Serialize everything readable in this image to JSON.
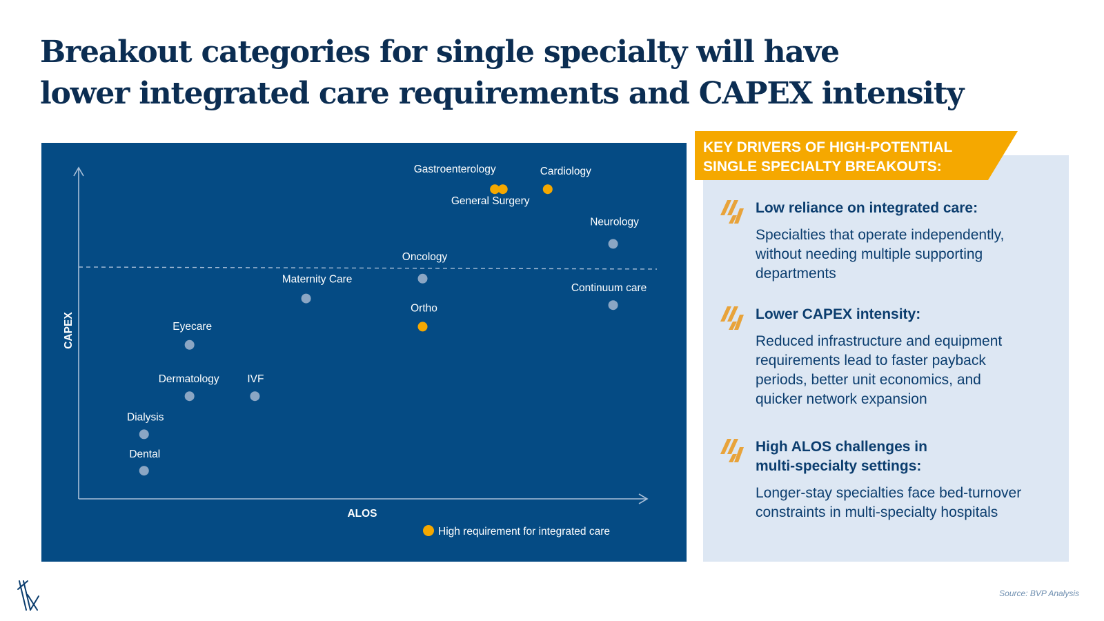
{
  "title": {
    "line1": "Breakout categories for single specialty will have",
    "line2": "lower integrated care requirements and CAPEX intensity"
  },
  "chart_data": {
    "type": "scatter",
    "xlabel": "ALOS",
    "ylabel": "CAPEX",
    "xlim": [
      0,
      100
    ],
    "ylim": [
      0,
      100
    ],
    "threshold_line": {
      "style": "dashed",
      "y": 70
    },
    "legend": {
      "label": "High requirement for integrated care",
      "color": "#f5a800",
      "placement": "bottom-right"
    },
    "colors": {
      "standard": "#8ba6c4",
      "high_integrated": "#f5a800"
    },
    "points": [
      {
        "name": "Gastroenterology",
        "x": 73.2,
        "y": 93.5,
        "high_integrated_care": true
      },
      {
        "name": "General Surgery",
        "x": 74.6,
        "y": 93.5,
        "high_integrated_care": true
      },
      {
        "name": "Cardiology",
        "x": 82.5,
        "y": 93.5,
        "high_integrated_care": true
      },
      {
        "name": "Neurology",
        "x": 94.0,
        "y": 77.0,
        "high_integrated_care": false
      },
      {
        "name": "Oncology",
        "x": 60.5,
        "y": 66.5,
        "high_integrated_care": false
      },
      {
        "name": "Maternity Care",
        "x": 40.0,
        "y": 60.5,
        "high_integrated_care": false
      },
      {
        "name": "Continuum care",
        "x": 94.0,
        "y": 58.5,
        "high_integrated_care": false
      },
      {
        "name": "Ortho",
        "x": 60.5,
        "y": 52.0,
        "high_integrated_care": true
      },
      {
        "name": "Eyecare",
        "x": 19.5,
        "y": 46.5,
        "high_integrated_care": false
      },
      {
        "name": "Dermatology",
        "x": 19.5,
        "y": 31.0,
        "high_integrated_care": false
      },
      {
        "name": "IVF",
        "x": 31.0,
        "y": 31.0,
        "high_integrated_care": false
      },
      {
        "name": "Dialysis",
        "x": 11.5,
        "y": 19.5,
        "high_integrated_care": false
      },
      {
        "name": "Dental",
        "x": 11.5,
        "y": 8.5,
        "high_integrated_care": false
      }
    ]
  },
  "drivers": {
    "banner_line1": "KEY DRIVERS OF HIGH-POTENTIAL",
    "banner_line2": "SINGLE SPECIALTY BREAKOUTS:",
    "banner_color": "#f5a800",
    "items": [
      {
        "icon": "hatched-parallelogram-icon",
        "heading_line1": "Low reliance on integrated care:",
        "heading_line2": "",
        "body_lines": [
          "Specialties that operate independently,",
          "without needing multiple supporting",
          "departments"
        ]
      },
      {
        "icon": "hatched-parallelogram-icon",
        "heading_line1": "Lower CAPEX intensity:",
        "heading_line2": "",
        "body_lines": [
          "Reduced infrastructure and equipment",
          "requirements lead to faster payback",
          "periods, better unit economics, and",
          "quicker network expansion"
        ]
      },
      {
        "icon": "hatched-parallelogram-icon",
        "heading_line1": "High ALOS challenges in",
        "heading_line2": "multi-specialty settings:",
        "body_lines": [
          "Longer-stay specialties face bed-turnover",
          "constraints in multi-specialty hospitals"
        ]
      }
    ]
  },
  "footer": {
    "logo_icon": "bvp-slash-logo-icon",
    "source": "Source: BVP Analysis"
  }
}
